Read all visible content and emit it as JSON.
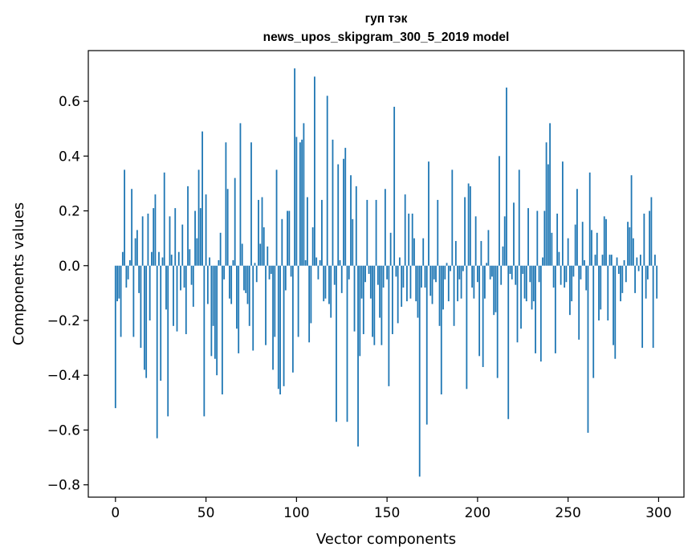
{
  "chart_data": {
    "type": "bar",
    "title": "гуп тэк",
    "subtitle": "news_upos_skipgram_300_5_2019 model",
    "xlabel": "Vector components",
    "ylabel": "Components values",
    "xlim": [
      -15,
      314
    ],
    "ylim": [
      -0.845,
      0.785
    ],
    "x_ticks": [
      0,
      50,
      100,
      150,
      200,
      250,
      300
    ],
    "x_tick_labels": [
      "0",
      "50",
      "100",
      "150",
      "200",
      "250",
      "300"
    ],
    "y_ticks": [
      -0.8,
      -0.6,
      -0.4,
      -0.2,
      0.0,
      0.2,
      0.4,
      0.6
    ],
    "y_tick_labels": [
      "−0.8",
      "−0.6",
      "−0.4",
      "−0.2",
      "0.0",
      "0.2",
      "0.4",
      "0.6"
    ],
    "grid": false,
    "bar_color": "#1f77b4",
    "x": "integer index 0..299 (one bar per vector component)",
    "values": [
      -0.52,
      -0.13,
      -0.12,
      -0.26,
      0.05,
      0.35,
      -0.08,
      -0.05,
      0.02,
      0.28,
      -0.26,
      0.1,
      0.13,
      -0.1,
      -0.3,
      0.18,
      -0.38,
      -0.41,
      0.19,
      -0.2,
      0.05,
      0.21,
      0.26,
      -0.63,
      0.05,
      -0.42,
      0.03,
      0.34,
      -0.16,
      -0.55,
      0.18,
      0.04,
      -0.22,
      0.21,
      -0.24,
      0.05,
      -0.09,
      0.15,
      -0.08,
      -0.25,
      0.29,
      0.06,
      -0.07,
      -0.15,
      0.2,
      0.1,
      0.35,
      0.21,
      0.49,
      -0.55,
      0.26,
      -0.14,
      0.03,
      -0.33,
      -0.22,
      -0.34,
      -0.4,
      0.02,
      0.12,
      -0.47,
      -0.05,
      0.45,
      0.28,
      -0.12,
      -0.14,
      0.02,
      0.32,
      -0.23,
      -0.32,
      0.52,
      0.08,
      -0.09,
      -0.1,
      -0.14,
      -0.22,
      0.45,
      -0.31,
      0.01,
      -0.06,
      0.24,
      0.08,
      0.25,
      0.14,
      -0.29,
      0.07,
      -0.05,
      -0.03,
      -0.38,
      -0.26,
      0.35,
      -0.45,
      -0.47,
      0.17,
      -0.44,
      -0.09,
      0.2,
      0.2,
      -0.04,
      -0.39,
      0.72,
      0.47,
      -0.26,
      0.45,
      0.46,
      0.52,
      0.02,
      0.25,
      -0.28,
      -0.21,
      0.14,
      0.69,
      0.03,
      -0.05,
      0.02,
      0.24,
      -0.13,
      -0.12,
      0.62,
      -0.14,
      -0.19,
      0.46,
      -0.07,
      -0.57,
      0.37,
      0.02,
      -0.1,
      0.39,
      0.43,
      -0.57,
      -0.05,
      0.33,
      0.17,
      -0.24,
      0.29,
      -0.66,
      -0.33,
      -0.12,
      -0.25,
      -0.06,
      0.24,
      -0.03,
      -0.12,
      -0.26,
      -0.29,
      0.24,
      -0.07,
      -0.19,
      -0.29,
      -0.08,
      0.28,
      -0.05,
      -0.44,
      0.12,
      -0.25,
      0.58,
      -0.04,
      -0.21,
      0.03,
      -0.15,
      -0.08,
      0.26,
      -0.13,
      0.19,
      -0.12,
      0.19,
      0.1,
      -0.13,
      -0.19,
      -0.77,
      -0.08,
      0.1,
      -0.08,
      -0.58,
      0.38,
      -0.11,
      -0.14,
      -0.05,
      -0.06,
      0.24,
      -0.22,
      -0.47,
      -0.16,
      -0.05,
      0.01,
      -0.13,
      -0.02,
      0.35,
      -0.22,
      0.09,
      -0.13,
      -0.05,
      -0.12,
      -0.02,
      0.25,
      -0.45,
      0.3,
      0.29,
      -0.08,
      -0.12,
      0.18,
      -0.06,
      -0.33,
      0.09,
      -0.37,
      -0.12,
      0.01,
      0.13,
      -0.05,
      -0.04,
      -0.18,
      -0.17,
      -0.41,
      0.4,
      -0.07,
      0.07,
      0.18,
      0.65,
      -0.56,
      -0.03,
      -0.05,
      0.23,
      -0.07,
      -0.28,
      0.35,
      -0.23,
      -0.03,
      -0.12,
      -0.13,
      0.21,
      -0.06,
      -0.16,
      -0.13,
      -0.32,
      0.2,
      -0.06,
      -0.35,
      0.03,
      0.2,
      0.45,
      0.37,
      0.52,
      0.12,
      -0.08,
      -0.32,
      0.19,
      0.05,
      -0.07,
      0.38,
      -0.08,
      -0.06,
      0.1,
      -0.18,
      -0.13,
      -0.04,
      0.15,
      0.28,
      -0.27,
      -0.05,
      0.16,
      0.02,
      -0.09,
      -0.61,
      0.34,
      0.13,
      -0.41,
      0.04,
      0.12,
      -0.2,
      -0.16,
      0.04,
      0.18,
      0.17,
      -0.2,
      0.04,
      0.04,
      -0.29,
      -0.34,
      0.03,
      -0.03,
      -0.13,
      -0.1,
      0.02,
      -0.06,
      0.16,
      0.14,
      0.33,
      0.1,
      -0.1,
      0.03,
      -0.02,
      0.04,
      -0.3,
      0.19,
      -0.12,
      -0.05,
      0.2,
      0.25,
      -0.3,
      0.04,
      -0.12
    ]
  }
}
